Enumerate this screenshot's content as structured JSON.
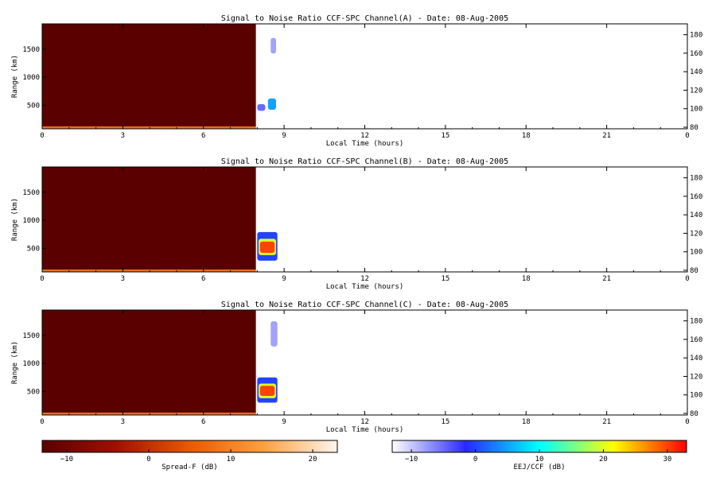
{
  "chart_data": [
    {
      "type": "heatmap",
      "title": "Signal to Noise Ratio CCF-SPC Channel(A) - Date: 08-Aug-2005",
      "xlabel": "Local Time (hours)",
      "ylabel": "Range (km)",
      "xlim": [
        0,
        24
      ],
      "x_ticks": [
        "0",
        "3",
        "6",
        "9",
        "12",
        "15",
        "18",
        "21",
        "0"
      ],
      "ylim": [
        80,
        1950
      ],
      "y_ticks": [
        "500",
        "1000",
        "1500"
      ],
      "y2_ticks": [
        "80",
        "100",
        "120",
        "140",
        "160",
        "180"
      ],
      "regions": [
        {
          "layer": "Spread-F",
          "x": [
            0,
            7.95
          ],
          "y": [
            80,
            1950
          ],
          "value_dB": -13
        },
        {
          "layer": "EEJ/CCF",
          "x": [
            8.0,
            8.3
          ],
          "y": [
            400,
            520
          ],
          "value_dB": -5
        },
        {
          "layer": "EEJ/CCF",
          "x": [
            8.4,
            8.7
          ],
          "y": [
            420,
            620
          ],
          "value_dB": 5
        },
        {
          "layer": "EEJ/CCF",
          "x": [
            8.5,
            8.7
          ],
          "y": [
            1420,
            1700
          ],
          "value_dB": -8
        }
      ]
    },
    {
      "type": "heatmap",
      "title": "Signal to Noise Ratio CCF-SPC Channel(B) - Date: 08-Aug-2005",
      "xlabel": "Local Time (hours)",
      "ylabel": "Range (km)",
      "xlim": [
        0,
        24
      ],
      "x_ticks": [
        "0",
        "3",
        "6",
        "9",
        "12",
        "15",
        "18",
        "21",
        "0"
      ],
      "ylim": [
        80,
        1950
      ],
      "y_ticks": [
        "500",
        "1000",
        "1500"
      ],
      "y2_ticks": [
        "80",
        "100",
        "120",
        "140",
        "160",
        "180"
      ],
      "regions": [
        {
          "layer": "Spread-F",
          "x": [
            0,
            7.95
          ],
          "y": [
            80,
            1950
          ],
          "value_dB": -13
        },
        {
          "layer": "EEJ/CCF",
          "x": [
            8.0,
            8.75
          ],
          "y": [
            280,
            790
          ],
          "value_dB": 0
        },
        {
          "layer": "EEJ/CCF",
          "x": [
            8.05,
            8.7
          ],
          "y": [
            380,
            670
          ],
          "value_dB": 20
        },
        {
          "layer": "EEJ/CCF",
          "x": [
            8.1,
            8.65
          ],
          "y": [
            420,
            620
          ],
          "value_dB": 30
        }
      ]
    },
    {
      "type": "heatmap",
      "title": "Signal to Noise Ratio CCF-SPC Channel(C) - Date: 08-Aug-2005",
      "xlabel": "Local Time (hours)",
      "ylabel": "Range (km)",
      "xlim": [
        0,
        24
      ],
      "x_ticks": [
        "0",
        "3",
        "6",
        "9",
        "12",
        "15",
        "18",
        "21",
        "0"
      ],
      "ylim": [
        80,
        1950
      ],
      "y_ticks": [
        "500",
        "1000",
        "1500"
      ],
      "y2_ticks": [
        "80",
        "100",
        "120",
        "140",
        "160",
        "180"
      ],
      "regions": [
        {
          "layer": "Spread-F",
          "x": [
            0,
            7.95
          ],
          "y": [
            80,
            1950
          ],
          "value_dB": -13
        },
        {
          "layer": "EEJ/CCF",
          "x": [
            8.0,
            8.75
          ],
          "y": [
            300,
            750
          ],
          "value_dB": 0
        },
        {
          "layer": "EEJ/CCF",
          "x": [
            8.05,
            8.7
          ],
          "y": [
            380,
            640
          ],
          "value_dB": 20
        },
        {
          "layer": "EEJ/CCF",
          "x": [
            8.1,
            8.65
          ],
          "y": [
            420,
            600
          ],
          "value_dB": 30
        },
        {
          "layer": "EEJ/CCF",
          "x": [
            8.5,
            8.75
          ],
          "y": [
            1300,
            1750
          ],
          "value_dB": -8
        }
      ]
    }
  ],
  "colorbars": [
    {
      "label": "Spread-F (dB)",
      "range": [
        -13,
        23
      ],
      "ticks": [
        -10,
        0,
        10,
        20
      ],
      "colors": [
        "#5a0000",
        "#a01000",
        "#e85a00",
        "#ffa040",
        "#fff6ee"
      ]
    },
    {
      "label": "EEJ/CCF (dB)",
      "range": [
        -13,
        33
      ],
      "ticks": [
        -10,
        0,
        10,
        20,
        30
      ],
      "colors": [
        "#ffffff",
        "#2828ff",
        "#00ffff",
        "#ffff00",
        "#ff0000"
      ]
    }
  ]
}
